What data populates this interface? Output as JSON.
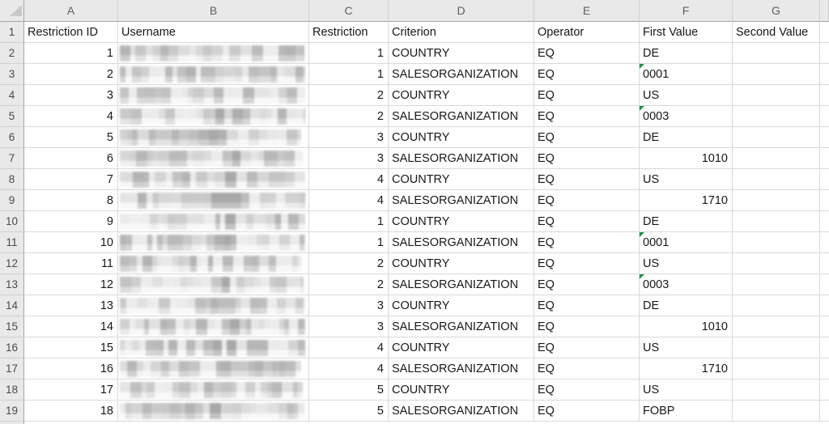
{
  "sheet": {
    "column_letters": [
      "A",
      "B",
      "C",
      "D",
      "E",
      "F",
      "G"
    ],
    "headers": [
      "Restriction ID",
      "Username",
      "Restriction",
      "Criterion",
      "Operator",
      "First Value",
      "Second Value"
    ],
    "row_numbers": [
      1,
      2,
      3,
      4,
      5,
      6,
      7,
      8,
      9,
      10,
      11,
      12,
      13,
      14,
      15,
      16,
      17,
      18,
      19
    ],
    "username_redacted": true,
    "rows": [
      {
        "restriction_id": "1",
        "username": "",
        "restriction": "1",
        "criterion": "COUNTRY",
        "operator": "EQ",
        "first_value": "DE",
        "second_value": "",
        "first_value_type": "text",
        "flagged": false
      },
      {
        "restriction_id": "2",
        "username": "",
        "restriction": "1",
        "criterion": "SALESORGANIZATION",
        "operator": "EQ",
        "first_value": "0001",
        "second_value": "",
        "first_value_type": "text",
        "flagged": true
      },
      {
        "restriction_id": "3",
        "username": "",
        "restriction": "2",
        "criterion": "COUNTRY",
        "operator": "EQ",
        "first_value": "US",
        "second_value": "",
        "first_value_type": "text",
        "flagged": false
      },
      {
        "restriction_id": "4",
        "username": "",
        "restriction": "2",
        "criterion": "SALESORGANIZATION",
        "operator": "EQ",
        "first_value": "0003",
        "second_value": "",
        "first_value_type": "text",
        "flagged": true
      },
      {
        "restriction_id": "5",
        "username": "",
        "restriction": "3",
        "criterion": "COUNTRY",
        "operator": "EQ",
        "first_value": "DE",
        "second_value": "",
        "first_value_type": "text",
        "flagged": false
      },
      {
        "restriction_id": "6",
        "username": "",
        "restriction": "3",
        "criterion": "SALESORGANIZATION",
        "operator": "EQ",
        "first_value": "1010",
        "second_value": "",
        "first_value_type": "number",
        "flagged": false
      },
      {
        "restriction_id": "7",
        "username": "",
        "restriction": "4",
        "criterion": "COUNTRY",
        "operator": "EQ",
        "first_value": "US",
        "second_value": "",
        "first_value_type": "text",
        "flagged": false
      },
      {
        "restriction_id": "8",
        "username": "",
        "restriction": "4",
        "criterion": "SALESORGANIZATION",
        "operator": "EQ",
        "first_value": "1710",
        "second_value": "",
        "first_value_type": "number",
        "flagged": false
      },
      {
        "restriction_id": "9",
        "username": "",
        "restriction": "1",
        "criterion": "COUNTRY",
        "operator": "EQ",
        "first_value": "DE",
        "second_value": "",
        "first_value_type": "text",
        "flagged": false
      },
      {
        "restriction_id": "10",
        "username": "",
        "restriction": "1",
        "criterion": "SALESORGANIZATION",
        "operator": "EQ",
        "first_value": "0001",
        "second_value": "",
        "first_value_type": "text",
        "flagged": true
      },
      {
        "restriction_id": "11",
        "username": "",
        "restriction": "2",
        "criterion": "COUNTRY",
        "operator": "EQ",
        "first_value": "US",
        "second_value": "",
        "first_value_type": "text",
        "flagged": false
      },
      {
        "restriction_id": "12",
        "username": "",
        "restriction": "2",
        "criterion": "SALESORGANIZATION",
        "operator": "EQ",
        "first_value": "0003",
        "second_value": "",
        "first_value_type": "text",
        "flagged": true
      },
      {
        "restriction_id": "13",
        "username": "",
        "restriction": "3",
        "criterion": "COUNTRY",
        "operator": "EQ",
        "first_value": "DE",
        "second_value": "",
        "first_value_type": "text",
        "flagged": false
      },
      {
        "restriction_id": "14",
        "username": "",
        "restriction": "3",
        "criterion": "SALESORGANIZATION",
        "operator": "EQ",
        "first_value": "1010",
        "second_value": "",
        "first_value_type": "number",
        "flagged": false
      },
      {
        "restriction_id": "15",
        "username": "",
        "restriction": "4",
        "criterion": "COUNTRY",
        "operator": "EQ",
        "first_value": "US",
        "second_value": "",
        "first_value_type": "text",
        "flagged": false
      },
      {
        "restriction_id": "16",
        "username": "",
        "restriction": "4",
        "criterion": "SALESORGANIZATION",
        "operator": "EQ",
        "first_value": "1710",
        "second_value": "",
        "first_value_type": "number",
        "flagged": false
      },
      {
        "restriction_id": "17",
        "username": "",
        "restriction": "5",
        "criterion": "COUNTRY",
        "operator": "EQ",
        "first_value": "US",
        "second_value": "",
        "first_value_type": "text",
        "flagged": false
      },
      {
        "restriction_id": "18",
        "username": "",
        "restriction": "5",
        "criterion": "SALESORGANIZATION",
        "operator": "EQ",
        "first_value": "FOBP",
        "second_value": "",
        "first_value_type": "text",
        "flagged": false
      }
    ]
  },
  "colors": {
    "grid_line": "#d9d9d9",
    "header_background": "#e9e9e9",
    "header_separator": "#d0d0d0",
    "header_divider": "#a6a6a6",
    "header_text": "#5f5f5f",
    "cell_text": "#171717",
    "error_flag_green": "#1a9648"
  }
}
